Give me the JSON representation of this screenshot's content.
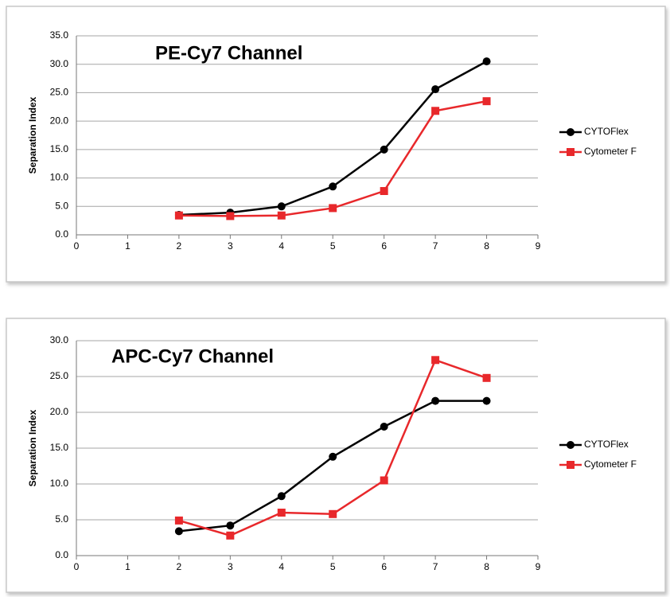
{
  "chart_data": [
    {
      "type": "line",
      "title": "PE-Cy7 Channel",
      "y_label": "Separation Index",
      "x": [
        2,
        3,
        4,
        5,
        6,
        7,
        8
      ],
      "series": [
        {
          "name": "CYTOFlex",
          "color": "#000000",
          "marker": "circle",
          "values": [
            3.5,
            3.9,
            5.0,
            8.5,
            15.0,
            25.6,
            30.5
          ]
        },
        {
          "name": "Cytometer F",
          "color": "#e8282b",
          "marker": "square",
          "values": [
            3.4,
            3.3,
            3.4,
            4.7,
            7.7,
            21.8,
            23.5
          ]
        }
      ],
      "xlim": [
        0,
        9
      ],
      "xticks": [
        0,
        1,
        2,
        3,
        4,
        5,
        6,
        7,
        8,
        9
      ],
      "ylim": [
        0,
        35
      ],
      "yticks": [
        {
          "value": 0,
          "label": "0.0"
        },
        {
          "value": 5,
          "label": "5.0"
        },
        {
          "value": 10,
          "label": "10.0"
        },
        {
          "value": 15,
          "label": "15.0"
        },
        {
          "value": 20,
          "label": "20.0"
        },
        {
          "value": 25,
          "label": "25.0"
        },
        {
          "value": 30,
          "label": "30.0"
        },
        {
          "value": 35,
          "label": "35.0"
        }
      ],
      "grid": true,
      "legend": "right"
    },
    {
      "type": "line",
      "title": "APC-Cy7 Channel",
      "y_label": "Separation Index",
      "x": [
        2,
        3,
        4,
        5,
        6,
        7,
        8
      ],
      "series": [
        {
          "name": "CYTOFlex",
          "color": "#000000",
          "marker": "circle",
          "values": [
            3.4,
            4.2,
            8.3,
            13.8,
            18.0,
            21.6,
            21.6
          ]
        },
        {
          "name": "Cytometer F",
          "color": "#e8282b",
          "marker": "square",
          "values": [
            4.9,
            2.8,
            6.0,
            5.8,
            10.5,
            27.3,
            24.8
          ]
        }
      ],
      "xlim": [
        0,
        9
      ],
      "xticks": [
        0,
        1,
        2,
        3,
        4,
        5,
        6,
        7,
        8,
        9
      ],
      "ylim": [
        0,
        30
      ],
      "yticks": [
        {
          "value": 0,
          "label": "0.0"
        },
        {
          "value": 5,
          "label": "5.0"
        },
        {
          "value": 10,
          "label": "10.0"
        },
        {
          "value": 15,
          "label": "15.0"
        },
        {
          "value": 20,
          "label": "20.0"
        },
        {
          "value": 25,
          "label": "25.0"
        },
        {
          "value": 30,
          "label": "30.0"
        }
      ],
      "grid": true,
      "legend": "right"
    }
  ]
}
